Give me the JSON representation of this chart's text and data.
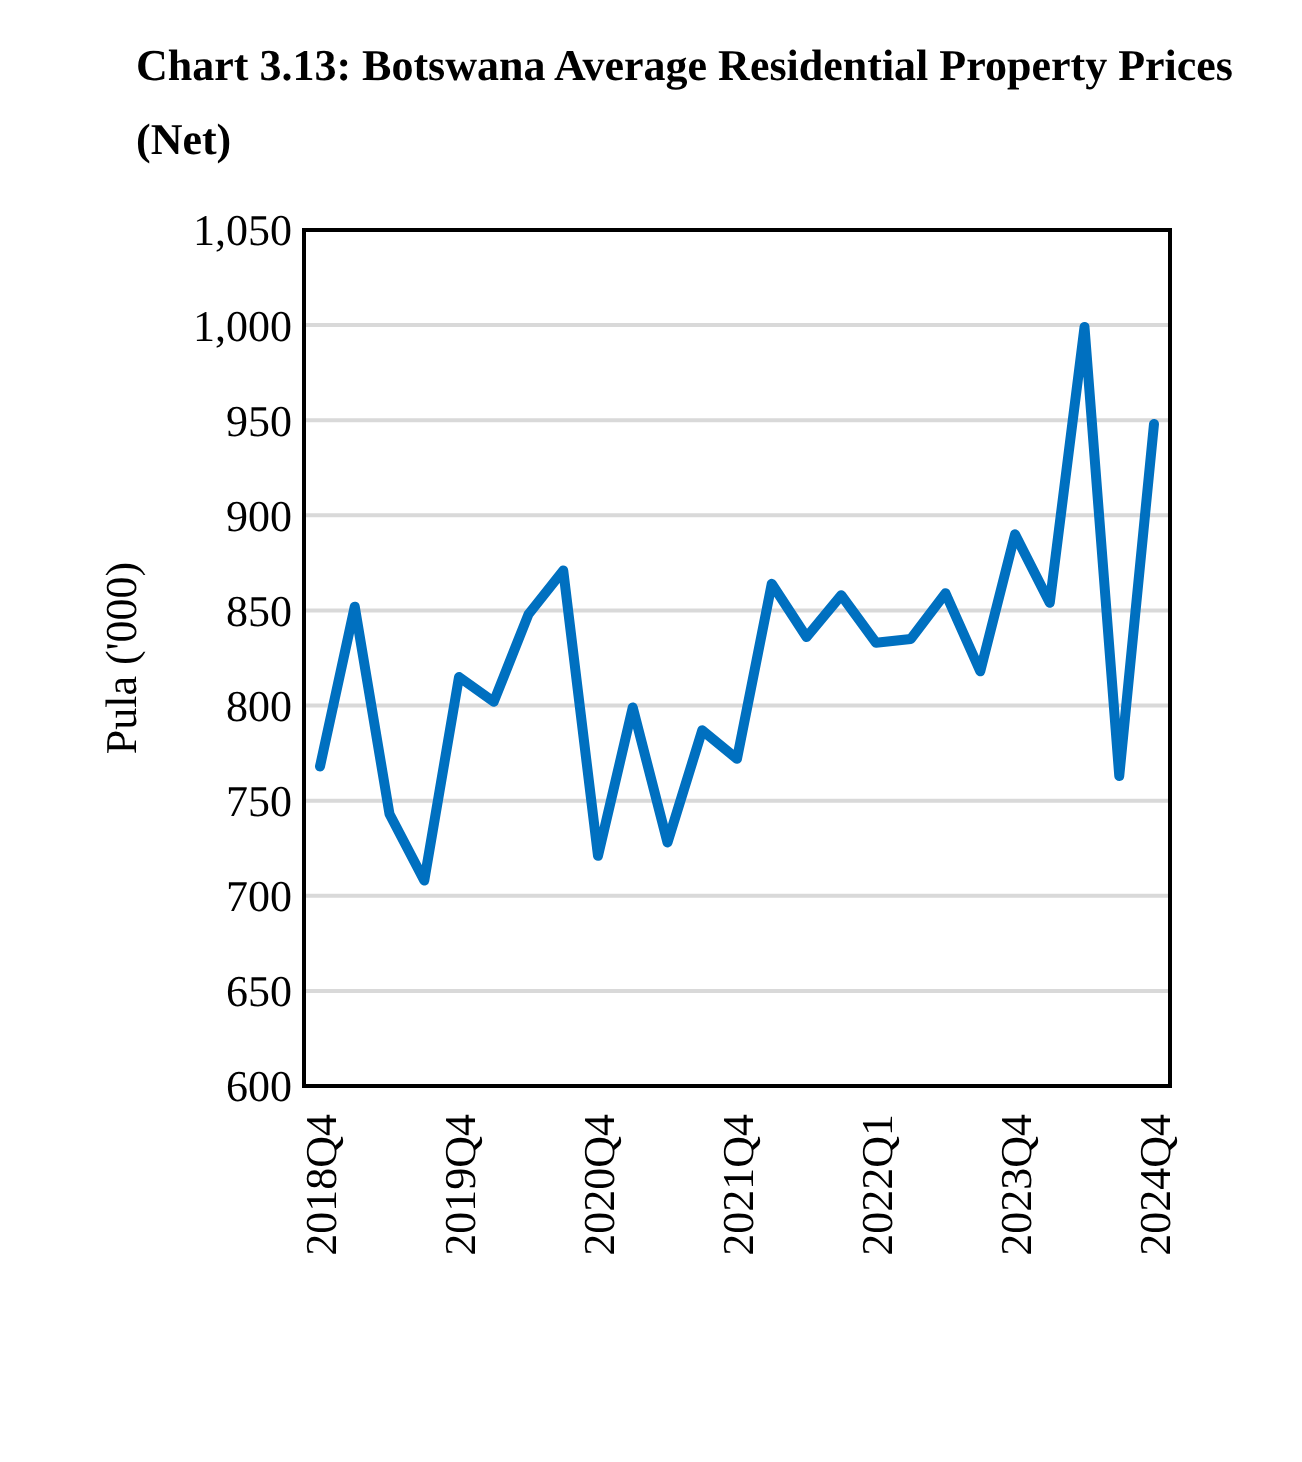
{
  "chart_data": {
    "type": "line",
    "title": "Chart 3.13: Botswana Average Residential Property Prices (Net)",
    "ylabel": "Pula ('000)",
    "categories": [
      "2018Q4",
      null,
      null,
      null,
      "2019Q4",
      null,
      null,
      null,
      "2020Q4",
      null,
      null,
      null,
      "2021Q4",
      null,
      null,
      null,
      "2022Q1",
      null,
      null,
      null,
      "2023Q4",
      null,
      null,
      null,
      "2024Q4"
    ],
    "series": [
      {
        "color": "#0070c0",
        "values": [
          768,
          852,
          743,
          708,
          815,
          802,
          848,
          871,
          721,
          799,
          728,
          787,
          772,
          864,
          836,
          858,
          833,
          835,
          859,
          818,
          890,
          854,
          999,
          763,
          948
        ]
      }
    ],
    "ylim": [
      600,
      1050
    ],
    "yticks": [
      {
        "value": 600,
        "label": "600"
      },
      {
        "value": 650,
        "label": "650"
      },
      {
        "value": 700,
        "label": "700"
      },
      {
        "value": 750,
        "label": "750"
      },
      {
        "value": 800,
        "label": "800"
      },
      {
        "value": 850,
        "label": "850"
      },
      {
        "value": 900,
        "label": "900"
      },
      {
        "value": 950,
        "label": "950"
      },
      {
        "value": 1000,
        "label": "1,000"
      },
      {
        "value": 1050,
        "label": "1,050"
      }
    ],
    "grid": "y",
    "marker": "none",
    "line_style": "solid"
  }
}
